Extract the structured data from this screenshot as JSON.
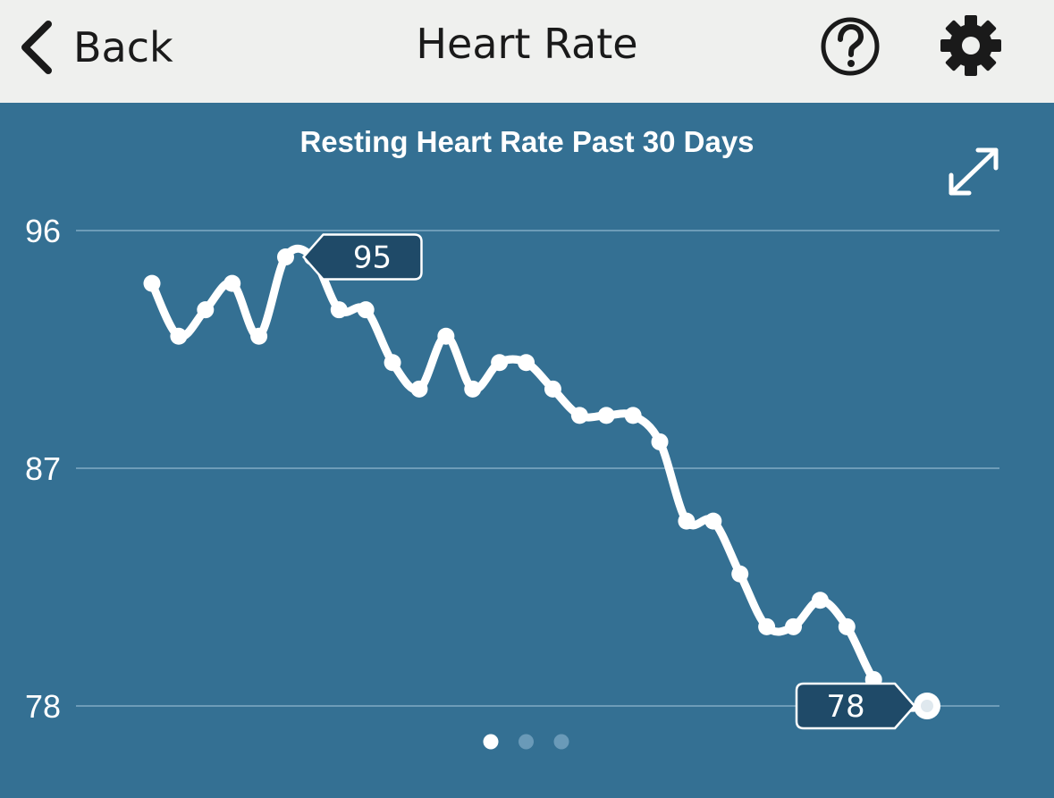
{
  "header": {
    "back_label": "Back",
    "title": "Heart Rate"
  },
  "colors": {
    "header_bg": "#eff0ee",
    "panel_bg": "#347093",
    "line": "#ffffff",
    "badge_bg": "#1f4a68"
  },
  "pager": {
    "count": 3,
    "active_index": 0
  },
  "chart_data": {
    "type": "line",
    "title": "Resting Heart Rate Past 30 Days",
    "xlabel": "",
    "ylabel": "",
    "ylim": [
      78,
      96
    ],
    "yticks": [
      "96",
      "87",
      "78"
    ],
    "x": [
      1,
      2,
      3,
      4,
      5,
      6,
      7,
      8,
      9,
      10,
      11,
      12,
      13,
      14,
      15,
      16,
      17,
      18,
      19,
      20,
      21,
      22,
      23,
      24,
      25,
      26,
      27,
      28,
      29,
      30
    ],
    "series": [
      {
        "name": "Resting Heart Rate",
        "values": [
          94,
          92,
          93,
          94,
          92,
          95,
          95,
          93,
          93,
          91,
          90,
          92,
          90,
          91,
          91,
          90,
          89,
          89,
          89,
          88,
          85,
          85,
          83,
          81,
          81,
          82,
          81,
          79,
          78,
          78
        ]
      }
    ],
    "annotations": [
      {
        "point_index": 5,
        "label": "95",
        "direction": "right"
      },
      {
        "point_index": 29,
        "label": "78",
        "direction": "left"
      }
    ]
  }
}
